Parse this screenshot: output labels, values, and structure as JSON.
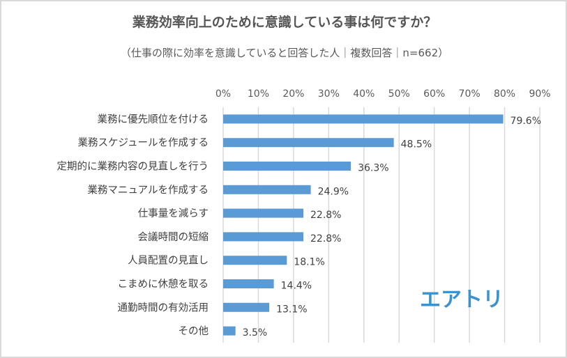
{
  "chart_data": {
    "type": "bar",
    "orientation": "horizontal",
    "title": "業務効率向上のために意識している事は何ですか？",
    "subtitle": "（仕事の際に効率を意識していると回答した人｜複数回答｜n=662）",
    "categories": [
      "業務に優先順位を付ける",
      "業務スケジュールを作成する",
      "定期的に業務内容の見直しを行う",
      "業務マニュアルを作成する",
      "仕事量を減らす",
      "会議時間の短縮",
      "人員配置の見直し",
      "こまめに休憩を取る",
      "通勤時間の有効活用",
      "その他"
    ],
    "values": [
      79.6,
      48.5,
      36.3,
      24.9,
      22.8,
      22.8,
      18.1,
      14.4,
      13.1,
      3.5
    ],
    "data_labels": [
      "79.6%",
      "48.5%",
      "36.3%",
      "24.9%",
      "22.8%",
      "22.8%",
      "18.1%",
      "14.4%",
      "13.1%",
      "3.5%"
    ],
    "xlim": [
      0,
      90
    ],
    "ticks": [
      "0%",
      "10%",
      "20%",
      "30%",
      "40%",
      "50%",
      "60%",
      "70%",
      "80%",
      "90%"
    ],
    "axis_position": "top",
    "grid": true,
    "bar_color": "#5b9bd5"
  },
  "logo": "エアトリ"
}
